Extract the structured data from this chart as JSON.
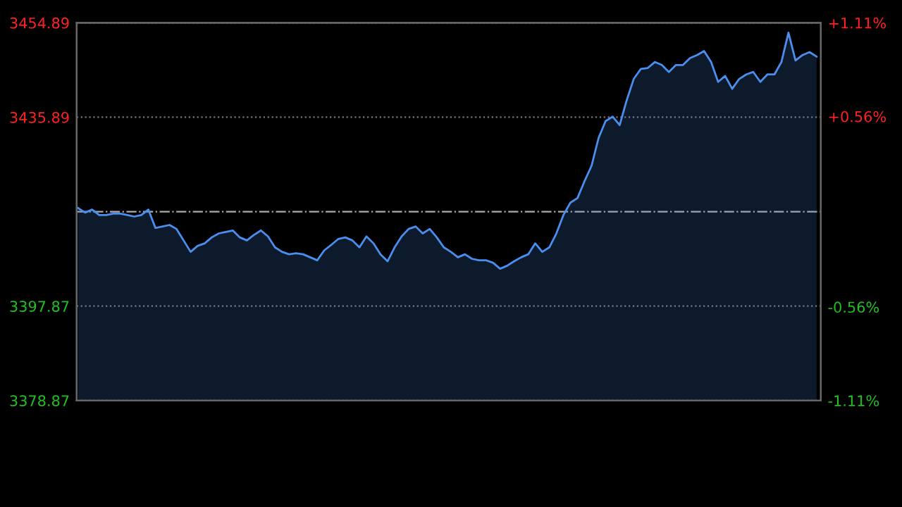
{
  "chart_data": {
    "type": "area",
    "categories": [
      null,
      null,
      null,
      null,
      null,
      null,
      null,
      null,
      null,
      null,
      null,
      null,
      null,
      null,
      null,
      null,
      null,
      null,
      null,
      null,
      null,
      null,
      null,
      null,
      null,
      null,
      null,
      null,
      null,
      null,
      null,
      null,
      null,
      null,
      null,
      null,
      null,
      null,
      null,
      null,
      null,
      null,
      null,
      null,
      null,
      null,
      null,
      null,
      null,
      null,
      null,
      null,
      null,
      null,
      null,
      null,
      null,
      null,
      null,
      null,
      null,
      null,
      null,
      null,
      null,
      null,
      null,
      null,
      null,
      null,
      null,
      null,
      null,
      null,
      null,
      null,
      null,
      null,
      null,
      null,
      null,
      null,
      null,
      null,
      null,
      null,
      null,
      null,
      null,
      null,
      null,
      null,
      null,
      null,
      null,
      null,
      null,
      null,
      null,
      null,
      null,
      null,
      null,
      null,
      null,
      null
    ],
    "series": [
      {
        "color": "#4a8ff0",
        "values": [
          3417.6,
          3416.7,
          3417.3,
          3416.2,
          3416.2,
          3416.5,
          3416.5,
          3416.2,
          3415.9,
          3416.2,
          3417.3,
          3413.6,
          3413.9,
          3414.2,
          3413.4,
          3411.1,
          3408.8,
          3410.0,
          3410.5,
          3411.7,
          3412.5,
          3412.8,
          3413.1,
          3411.7,
          3411.1,
          3412.2,
          3413.1,
          3411.9,
          3409.7,
          3408.8,
          3408.3,
          3408.5,
          3408.3,
          3407.7,
          3407.1,
          3409.1,
          3410.2,
          3411.4,
          3411.7,
          3411.1,
          3409.7,
          3411.9,
          3410.5,
          3408.3,
          3406.9,
          3409.7,
          3411.9,
          3413.4,
          3413.9,
          3412.5,
          3413.4,
          3411.7,
          3409.7,
          3408.8,
          3407.7,
          3408.3,
          3407.4,
          3407.1,
          3407.1,
          3406.6,
          3405.4,
          3406.0,
          3406.9,
          3407.7,
          3408.3,
          3410.5,
          3408.8,
          3409.7,
          3412.5,
          3416.2,
          3418.7,
          3419.6,
          3423.0,
          3426.1,
          3431.7,
          3435.1,
          3436.0,
          3434.3,
          3439.3,
          3443.6,
          3445.6,
          3445.8,
          3447.0,
          3446.4,
          3445.0,
          3446.4,
          3446.4,
          3447.8,
          3448.4,
          3449.2,
          3447.0,
          3443.0,
          3444.2,
          3441.6,
          3443.6,
          3444.5,
          3445.0,
          3443.0,
          3444.5,
          3444.5,
          3447.0,
          3452.9,
          3447.3,
          3448.4,
          3449.0,
          3448.1
        ]
      }
    ],
    "ylim": [
      3378.87,
      3454.89
    ],
    "yticks": [
      3378.87,
      3397.87,
      3435.89,
      3454.89
    ],
    "y2lim": [
      -1.11,
      1.11
    ],
    "y2ticks": [
      {
        "value": -1.11,
        "label": "-1.11%"
      },
      {
        "value": -0.56,
        "label": "-0.56%"
      },
      {
        "value": 0.56,
        "label": "+0.56%"
      },
      {
        "value": 1.11,
        "label": "+1.11%"
      }
    ],
    "ref_lines": [
      {
        "axis": "y",
        "value": 3416.88,
        "color": "#aaaaaa",
        "line_style": "dashdot"
      }
    ],
    "grid": "y"
  }
}
